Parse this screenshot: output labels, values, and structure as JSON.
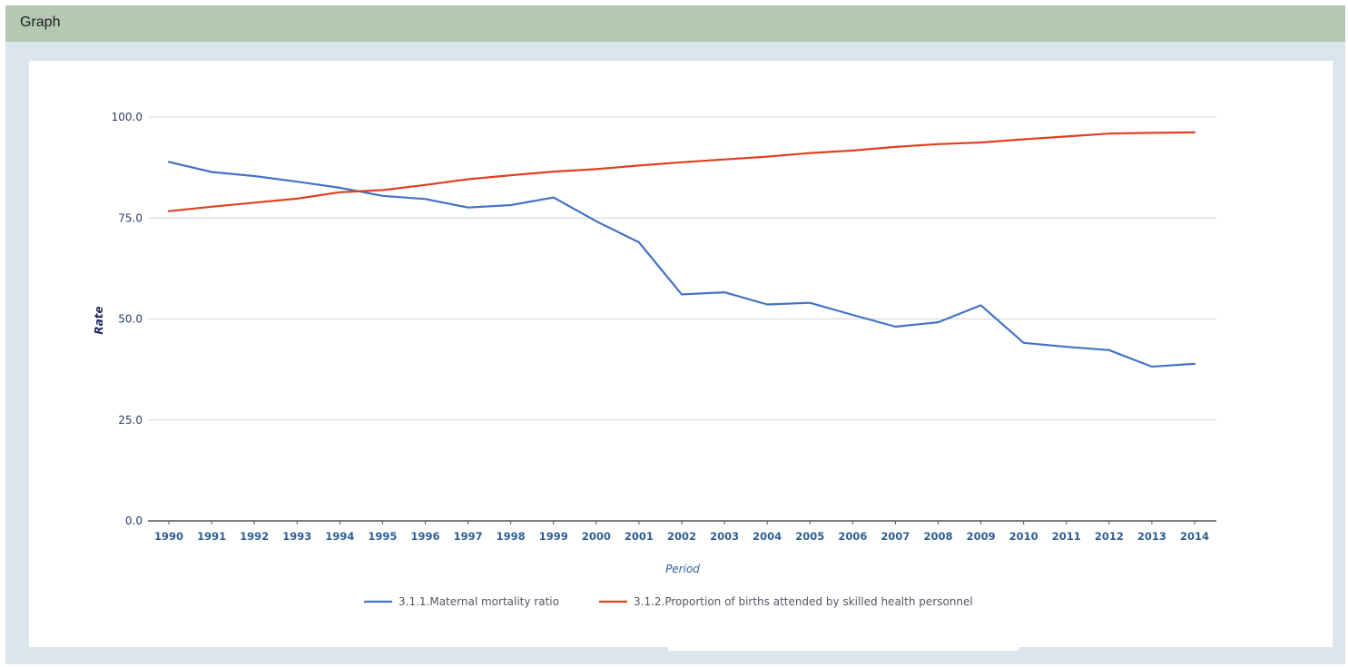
{
  "panel": {
    "title": "Graph"
  },
  "chart_data": {
    "type": "line",
    "title": "",
    "xlabel": "Period",
    "ylabel": "Rate",
    "ylim": [
      0,
      100
    ],
    "yticks": [
      "0.0",
      "25.0",
      "50.0",
      "75.0",
      "100.0"
    ],
    "grid": true,
    "legend_position": "bottom",
    "x": [
      "1990",
      "1991",
      "1992",
      "1993",
      "1994",
      "1995",
      "1996",
      "1997",
      "1998",
      "1999",
      "2000",
      "2001",
      "2002",
      "2003",
      "2004",
      "2005",
      "2006",
      "2007",
      "2008",
      "2009",
      "2010",
      "2011",
      "2012",
      "2013",
      "2014"
    ],
    "series": [
      {
        "name": "3.1.1.Maternal mortality ratio",
        "color": "#4472c4",
        "values": [
          88.9,
          86.4,
          85.4,
          84.0,
          82.5,
          80.5,
          79.7,
          77.6,
          78.2,
          80.1,
          74.2,
          69.0,
          56.1,
          56.6,
          53.6,
          54.0,
          51.0,
          48.1,
          49.2,
          53.4,
          44.1,
          43.1,
          42.3,
          38.2,
          38.9
        ]
      },
      {
        "name": "3.1.2.Proportion of births attended by skilled health personnel",
        "color": "#e0411f",
        "values": [
          76.7,
          77.8,
          78.8,
          79.8,
          81.4,
          81.9,
          83.2,
          84.6,
          85.6,
          86.5,
          87.1,
          88.0,
          88.8,
          89.5,
          90.2,
          91.1,
          91.7,
          92.6,
          93.3,
          93.7,
          94.5,
          95.2,
          95.9,
          96.1,
          96.2
        ]
      }
    ]
  }
}
